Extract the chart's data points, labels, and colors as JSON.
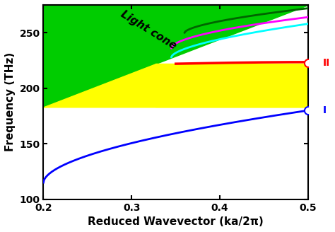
{
  "xlim": [
    0.2,
    0.5
  ],
  "ylim": [
    100,
    275
  ],
  "xlabel": "Reduced Wavevector (ka/2π)",
  "ylabel": "Frequency (THz)",
  "light_cone_color": "#00cc00",
  "yellow_band_color": "#ffff00",
  "light_cone_label": "Light cone",
  "label_I": "I",
  "label_II": "II",
  "title_fontsize": 12,
  "axis_fontsize": 11,
  "tick_fontsize": 10
}
